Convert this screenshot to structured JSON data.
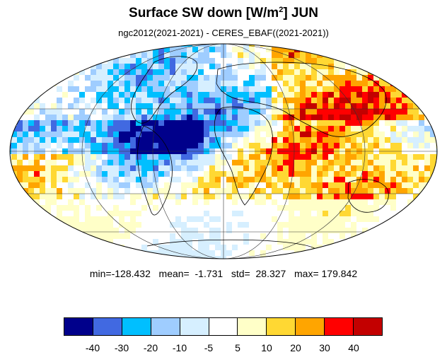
{
  "title": {
    "main": "Surface SW down [W/m",
    "sup": "2",
    "end": "]  JUN"
  },
  "subtitle": "ngc2012(2021-2021) - CERES_EBAF((2021-2021))",
  "stats": {
    "text": "min=-128.432   mean=  -1.731   std=  28.327   max= 179.842"
  },
  "colorbar": {
    "colors": [
      "#00008b",
      "#4169e1",
      "#00bfff",
      "#9fcdff",
      "#d6efff",
      "#ffffff",
      "#ffffc8",
      "#ffd833",
      "#ffa500",
      "#ff0000",
      "#c30000"
    ],
    "labels": [
      "-40",
      "-30",
      "-20",
      "-10",
      "-5",
      "5",
      "10",
      "20",
      "30",
      "40"
    ]
  }
}
